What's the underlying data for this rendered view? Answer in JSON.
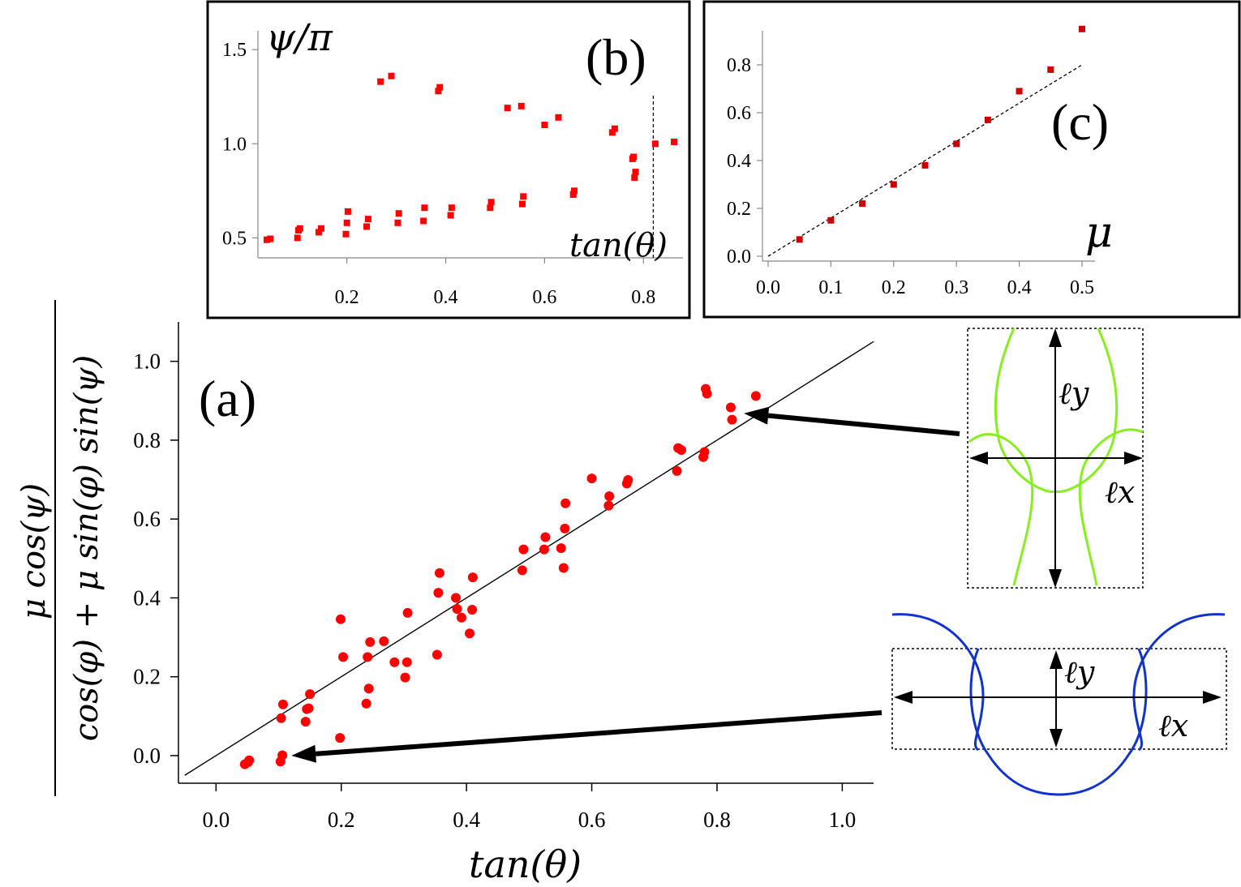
{
  "chart_data": [
    {
      "id": "a",
      "type": "scatter",
      "panel_label": "(a)",
      "xlabel": "tan(θ)",
      "ylabel_numerator": "μ cos(ψ)",
      "ylabel_denominator": "cos(φ) + μ sin(φ) sin(ψ)",
      "xlim": [
        -0.06,
        1.05
      ],
      "ylim": [
        -0.07,
        1.1
      ],
      "xticks": [
        0.0,
        0.2,
        0.4,
        0.6,
        0.8,
        1.0
      ],
      "yticks": [
        0.0,
        0.2,
        0.4,
        0.6,
        0.8,
        1.0
      ],
      "xtick_labels": [
        "0.0",
        "0.2",
        "0.4",
        "0.6",
        "0.8",
        "1.0"
      ],
      "ytick_labels": [
        "0.0",
        "0.2",
        "0.4",
        "0.6",
        "0.8",
        "1.0"
      ],
      "fit_line": {
        "x": [
          -0.05,
          1.05
        ],
        "y": [
          -0.05,
          1.05
        ]
      },
      "points": [
        [
          0.046,
          -0.022
        ],
        [
          0.051,
          -0.017
        ],
        [
          0.053,
          -0.012
        ],
        [
          0.103,
          -0.015
        ],
        [
          0.106,
          0.001
        ],
        [
          0.104,
          0.095
        ],
        [
          0.107,
          0.13
        ],
        [
          0.143,
          0.086
        ],
        [
          0.145,
          0.118
        ],
        [
          0.148,
          0.12
        ],
        [
          0.15,
          0.156
        ],
        [
          0.198,
          0.045
        ],
        [
          0.199,
          0.346
        ],
        [
          0.203,
          0.25
        ],
        [
          0.24,
          0.132
        ],
        [
          0.242,
          0.25
        ],
        [
          0.244,
          0.17
        ],
        [
          0.246,
          0.288
        ],
        [
          0.268,
          0.29
        ],
        [
          0.285,
          0.237
        ],
        [
          0.302,
          0.198
        ],
        [
          0.305,
          0.237
        ],
        [
          0.306,
          0.362
        ],
        [
          0.353,
          0.256
        ],
        [
          0.355,
          0.413
        ],
        [
          0.357,
          0.463
        ],
        [
          0.383,
          0.4
        ],
        [
          0.385,
          0.372
        ],
        [
          0.392,
          0.35
        ],
        [
          0.405,
          0.31
        ],
        [
          0.409,
          0.37
        ],
        [
          0.41,
          0.452
        ],
        [
          0.489,
          0.47
        ],
        [
          0.491,
          0.523
        ],
        [
          0.524,
          0.523
        ],
        [
          0.526,
          0.554
        ],
        [
          0.551,
          0.526
        ],
        [
          0.555,
          0.476
        ],
        [
          0.557,
          0.576
        ],
        [
          0.558,
          0.64
        ],
        [
          0.6,
          0.703
        ],
        [
          0.627,
          0.634
        ],
        [
          0.628,
          0.658
        ],
        [
          0.656,
          0.69
        ],
        [
          0.658,
          0.699
        ],
        [
          0.736,
          0.722
        ],
        [
          0.738,
          0.78
        ],
        [
          0.743,
          0.775
        ],
        [
          0.778,
          0.757
        ],
        [
          0.78,
          0.77
        ],
        [
          0.782,
          0.93
        ],
        [
          0.784,
          0.918
        ],
        [
          0.822,
          0.883
        ],
        [
          0.824,
          0.852
        ],
        [
          0.862,
          0.912
        ]
      ],
      "point_color": "#ff0000",
      "arrows": [
        {
          "to_data": [
            0.825,
            0.868
          ],
          "from_inset": "green"
        },
        {
          "to_data": [
            0.11,
            0.0
          ],
          "from_inset": "blue"
        }
      ]
    },
    {
      "id": "b",
      "type": "scatter",
      "panel_label": "(b)",
      "ylabel": "ψ/π",
      "xlabel": "tan(θ)",
      "xlim": [
        0.02,
        0.88
      ],
      "ylim": [
        0.45,
        1.6
      ],
      "xticks": [
        0.2,
        0.4,
        0.6,
        0.8
      ],
      "yticks": [
        0.5,
        1.0,
        1.5
      ],
      "xtick_labels": [
        "0.2",
        "0.4",
        "0.6",
        "0.8"
      ],
      "ytick_labels": [
        "0.5",
        "1.0",
        "1.5"
      ],
      "vline": 0.82,
      "points": [
        [
          0.038,
          0.49
        ],
        [
          0.045,
          0.495
        ],
        [
          0.1,
          0.5
        ],
        [
          0.102,
          0.54
        ],
        [
          0.105,
          0.55
        ],
        [
          0.143,
          0.53
        ],
        [
          0.148,
          0.55
        ],
        [
          0.198,
          0.52
        ],
        [
          0.2,
          0.58
        ],
        [
          0.202,
          0.64
        ],
        [
          0.24,
          0.56
        ],
        [
          0.243,
          0.6
        ],
        [
          0.268,
          1.33
        ],
        [
          0.29,
          1.36
        ],
        [
          0.303,
          0.58
        ],
        [
          0.305,
          0.63
        ],
        [
          0.355,
          0.59
        ],
        [
          0.357,
          0.66
        ],
        [
          0.385,
          1.28
        ],
        [
          0.388,
          1.3
        ],
        [
          0.41,
          0.62
        ],
        [
          0.412,
          0.66
        ],
        [
          0.49,
          0.66
        ],
        [
          0.492,
          0.69
        ],
        [
          0.525,
          1.19
        ],
        [
          0.553,
          1.2
        ],
        [
          0.555,
          0.68
        ],
        [
          0.557,
          0.72
        ],
        [
          0.6,
          1.1
        ],
        [
          0.628,
          1.14
        ],
        [
          0.658,
          0.73
        ],
        [
          0.66,
          0.75
        ],
        [
          0.737,
          1.06
        ],
        [
          0.742,
          1.08
        ],
        [
          0.778,
          0.92
        ],
        [
          0.78,
          0.93
        ],
        [
          0.782,
          0.82
        ],
        [
          0.784,
          0.85
        ],
        [
          0.824,
          1.0
        ],
        [
          0.862,
          1.01
        ]
      ],
      "point_color": "#ff0000"
    },
    {
      "id": "c",
      "type": "scatter",
      "panel_label": "(c)",
      "xlabel": "μ",
      "xlim": [
        -0.02,
        0.52
      ],
      "ylim": [
        -0.02,
        0.95
      ],
      "xticks": [
        0.0,
        0.1,
        0.2,
        0.3,
        0.4,
        0.5
      ],
      "yticks": [
        0.0,
        0.2,
        0.4,
        0.6,
        0.8
      ],
      "xtick_labels": [
        "0.0",
        "0.1",
        "0.2",
        "0.3",
        "0.4",
        "0.5"
      ],
      "ytick_labels": [
        "0.0",
        "0.2",
        "0.4",
        "0.6",
        "0.8"
      ],
      "fit_line": {
        "x": [
          0.0,
          0.5
        ],
        "y": [
          0.0,
          0.8
        ]
      },
      "points": [
        [
          0.05,
          0.07
        ],
        [
          0.1,
          0.15
        ],
        [
          0.15,
          0.22
        ],
        [
          0.2,
          0.3
        ],
        [
          0.25,
          0.38
        ],
        [
          0.3,
          0.47
        ],
        [
          0.35,
          0.57
        ],
        [
          0.4,
          0.69
        ],
        [
          0.45,
          0.78
        ],
        [
          0.5,
          0.95
        ]
      ],
      "point_color": "#cc0000"
    }
  ],
  "insets": {
    "green": {
      "color": "#88ee22",
      "label_y": "ℓy",
      "label_x": "ℓx"
    },
    "blue": {
      "color": "#1133cc",
      "label_y": "ℓy",
      "label_x": "ℓx"
    }
  }
}
